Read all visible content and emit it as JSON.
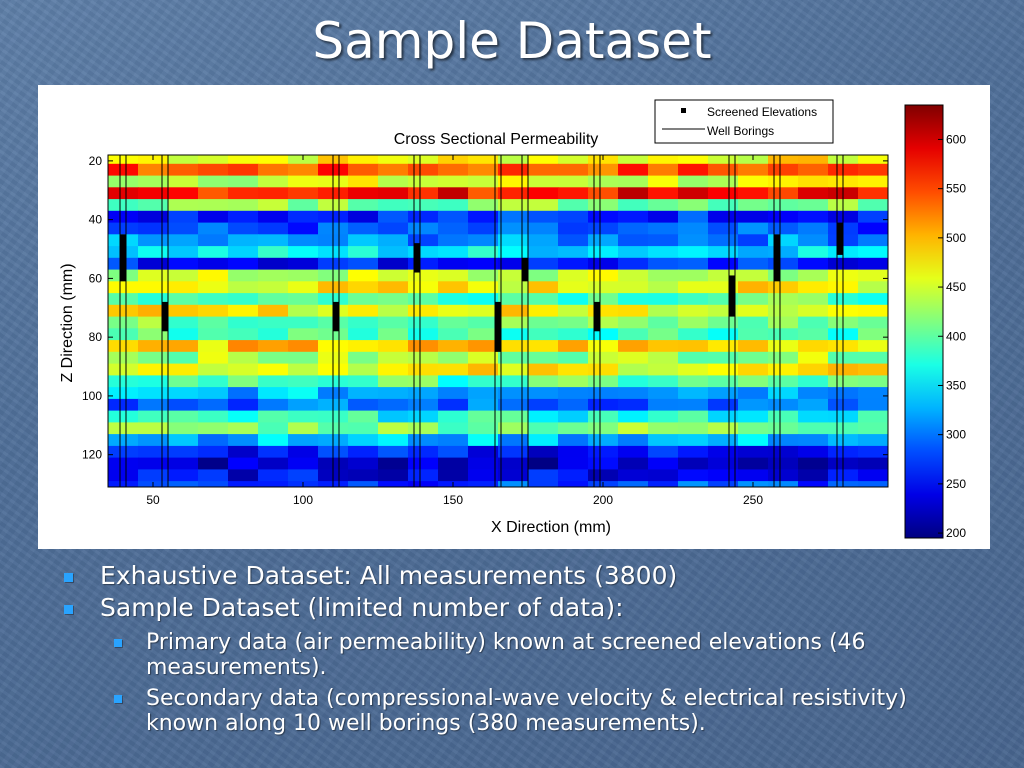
{
  "slide": {
    "title": "Sample Dataset",
    "bullets": [
      {
        "level": 1,
        "text": "Exhaustive Dataset: All measurements (3800)"
      },
      {
        "level": 1,
        "text": "Sample Dataset (limited number of data):"
      },
      {
        "level": 2,
        "text": "Primary data (air permeability) known at screened elevations (46 measurements)."
      },
      {
        "level": 2,
        "text": "Secondary data (compressional-wave velocity & electrical resistivity) known along 10 well borings (380 measurements)."
      }
    ],
    "bullet_color": "#29a3ff",
    "background_color": "#56769f"
  },
  "chart_data": {
    "type": "heatmap",
    "title": "Cross Sectional Permeability",
    "xlabel": "X Direction (mm)",
    "ylabel": "Z Direction (mm)",
    "xlim": [
      35,
      295
    ],
    "ylim": [
      131,
      18
    ],
    "xticks": [
      50,
      100,
      150,
      200,
      250
    ],
    "yticks": [
      20,
      40,
      60,
      80,
      100,
      120
    ],
    "colorbar": {
      "range": [
        195,
        635
      ],
      "ticks": [
        200,
        250,
        300,
        350,
        400,
        450,
        500,
        550,
        600
      ],
      "colormap": "jet"
    },
    "legend": {
      "placement": "top-right",
      "items": [
        {
          "label": "Screened Elevations",
          "marker": "square"
        },
        {
          "label": "Well Borings",
          "marker": "line"
        }
      ]
    },
    "layers": [
      {
        "z": 19,
        "value": 470
      },
      {
        "z": 23,
        "value": 545
      },
      {
        "z": 27,
        "value": 450
      },
      {
        "z": 31,
        "value": 575
      },
      {
        "z": 35,
        "value": 420
      },
      {
        "z": 39,
        "value": 270
      },
      {
        "z": 43,
        "value": 280
      },
      {
        "z": 47,
        "value": 310
      },
      {
        "z": 51,
        "value": 355
      },
      {
        "z": 55,
        "value": 260
      },
      {
        "z": 59,
        "value": 440
      },
      {
        "z": 63,
        "value": 470
      },
      {
        "z": 67,
        "value": 400
      },
      {
        "z": 71,
        "value": 470
      },
      {
        "z": 75,
        "value": 410
      },
      {
        "z": 79,
        "value": 395
      },
      {
        "z": 83,
        "value": 490
      },
      {
        "z": 87,
        "value": 430
      },
      {
        "z": 91,
        "value": 470
      },
      {
        "z": 95,
        "value": 395
      },
      {
        "z": 99,
        "value": 330
      },
      {
        "z": 103,
        "value": 295
      },
      {
        "z": 107,
        "value": 370
      },
      {
        "z": 111,
        "value": 420
      },
      {
        "z": 115,
        "value": 330
      },
      {
        "z": 119,
        "value": 255
      },
      {
        "z": 123,
        "value": 225
      },
      {
        "z": 127,
        "value": 245
      },
      {
        "z": 131,
        "value": 280
      }
    ],
    "well_borings": [
      {
        "x": 40,
        "screened_z": [
          45,
          61
        ]
      },
      {
        "x": 54,
        "screened_z": [
          68,
          78
        ]
      },
      {
        "x": 111,
        "screened_z": [
          68,
          78
        ]
      },
      {
        "x": 138,
        "screened_z": [
          48,
          58
        ]
      },
      {
        "x": 165,
        "screened_z": [
          68,
          85
        ]
      },
      {
        "x": 174,
        "screened_z": [
          53,
          61
        ]
      },
      {
        "x": 198,
        "screened_z": [
          68,
          78
        ]
      },
      {
        "x": 243,
        "screened_z": [
          59,
          73
        ]
      },
      {
        "x": 258,
        "screened_z": [
          45,
          61
        ]
      },
      {
        "x": 279,
        "screened_z": [
          41,
          52
        ]
      }
    ]
  }
}
